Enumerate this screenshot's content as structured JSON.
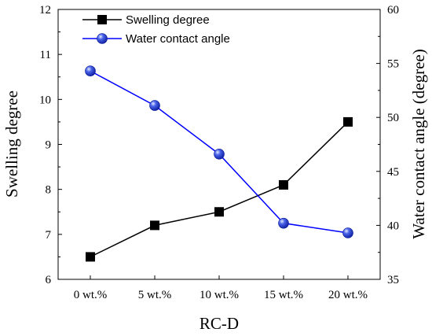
{
  "chart_data": {
    "type": "line",
    "categories": [
      "0 wt.%",
      "5 wt.%",
      "10 wt.%",
      "15 wt.%",
      "20 wt.%"
    ],
    "xlabel": "RC-D",
    "ylabel": "Swelling degree",
    "y2label": "Water contact angle (degree)",
    "ylim": [
      6,
      12
    ],
    "y2lim": [
      35,
      60
    ],
    "yticks": [
      6,
      7,
      8,
      9,
      10,
      11,
      12
    ],
    "y2ticks": [
      35,
      40,
      45,
      50,
      55,
      60
    ],
    "grid": false,
    "legend_position": "top-left",
    "series": [
      {
        "name": "Swelling degree",
        "axis": "left",
        "marker": "square",
        "color": "#000000",
        "values": [
          6.5,
          7.2,
          7.5,
          8.1,
          9.5
        ]
      },
      {
        "name": "Water contact angle",
        "axis": "right",
        "marker": "sphere",
        "color": "#0000ff",
        "values": [
          54.3,
          51.1,
          46.6,
          40.2,
          39.3
        ]
      }
    ]
  }
}
